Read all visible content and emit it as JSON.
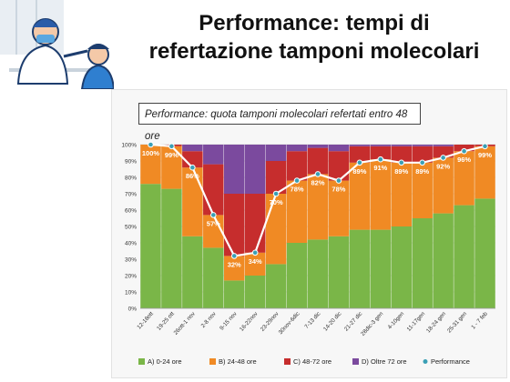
{
  "slide": {
    "title_line1": "Performance: tempi di",
    "title_line2": "refertazione tamponi molecolari"
  },
  "chart_data": {
    "type": "bar",
    "stacked": true,
    "title": "Performance: quota tamponi molecolari refertati entro 48 ore",
    "categories": [
      "12-18ott",
      "19-25 ott",
      "26ott-1 nov",
      "2-8 nov",
      "9-15 nov",
      "16-22nov",
      "23-29nov",
      "30nov-6dic",
      "7-13 dic",
      "14-20 dic",
      "21-27 dic",
      "28dic-3 gen",
      "4-10gen",
      "11-17gen",
      "18-24 gen",
      "25-31 gen",
      "1 - 7 feb"
    ],
    "ylim": [
      0,
      100
    ],
    "yticks": [
      "0%",
      "10%",
      "20%",
      "30%",
      "40%",
      "50%",
      "60%",
      "70%",
      "80%",
      "90%",
      "100%"
    ],
    "series": [
      {
        "name": "A) 0-24 ore",
        "values": [
          76,
          73,
          44,
          37,
          17,
          20,
          27,
          40,
          42,
          44,
          48,
          48,
          50,
          55,
          58,
          63,
          67
        ]
      },
      {
        "name": "B) 24-48 ore",
        "values": [
          24,
          26,
          42,
          20,
          15,
          14,
          43,
          38,
          40,
          34,
          41,
          43,
          39,
          34,
          34,
          33,
          32
        ]
      },
      {
        "name": "C) 48-72 ore",
        "values": [
          0,
          1,
          10,
          31,
          38,
          36,
          20,
          18,
          16,
          18,
          10,
          8,
          10,
          10,
          7,
          4,
          1
        ]
      },
      {
        "name": "D) Oltre 72 ore",
        "values": [
          0,
          0,
          4,
          12,
          30,
          30,
          10,
          4,
          2,
          4,
          1,
          1,
          1,
          1,
          1,
          0,
          0
        ]
      }
    ],
    "line": {
      "name": "Performance",
      "values": [
        100,
        99,
        86,
        57,
        32,
        34,
        70,
        78,
        82,
        78,
        89,
        91,
        89,
        89,
        92,
        96,
        99
      ]
    },
    "data_labels": [
      "100%",
      "99%",
      "86%",
      "57%",
      "32%",
      "34%",
      "70%",
      "78%",
      "82%",
      "78%",
      "89%",
      "91%",
      "89%",
      "89%",
      "92%",
      "96%",
      "99%"
    ],
    "grid": true,
    "legend_position": "bottom",
    "colors": {
      "A": "#7ab648",
      "B": "#f08a24",
      "C": "#c62d2d",
      "D": "#7b4a9e",
      "line": "#ffffff",
      "marker": "#3a9fb5"
    }
  }
}
